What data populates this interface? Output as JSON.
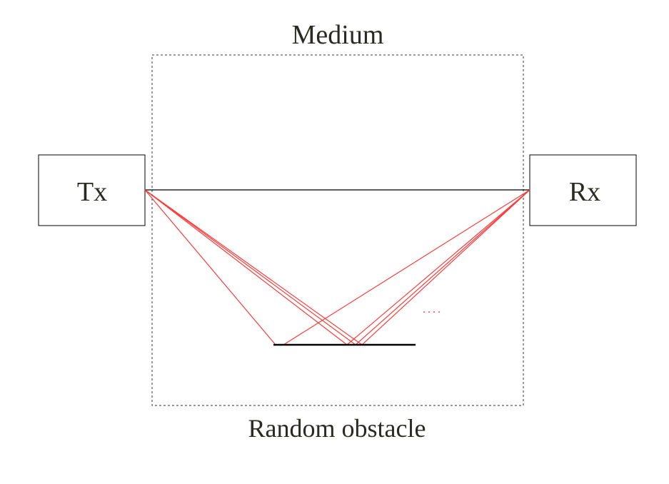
{
  "labels": {
    "medium": "Medium",
    "tx": "Tx",
    "rx": "Rx",
    "obstacle": "Random obstacle",
    "ellipsis": "...."
  },
  "colors": {
    "line": "#000000",
    "ray": "#ff3b3b",
    "text": "#2a2a22",
    "dashed_border": "#333333"
  },
  "icons": {
    "transmitter": "tx-box",
    "receiver": "rx-box"
  }
}
